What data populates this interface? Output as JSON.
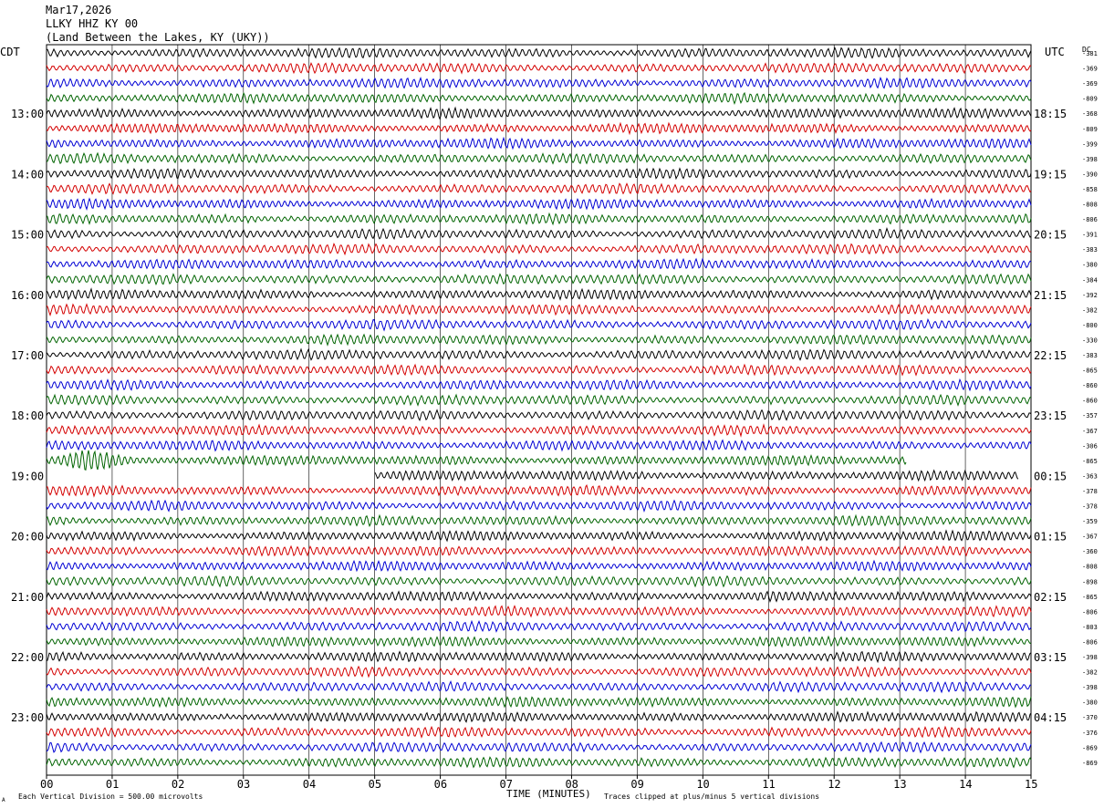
{
  "header": {
    "date": "Mar17,2026",
    "station": "LLKY HHZ KY 00",
    "location": "(Land Between the Lakes, KY (UKY))"
  },
  "left_tz": "CDT",
  "right_tz": "UTC",
  "dc_label": "DC",
  "footer": {
    "scale_note": "Each Vertical Division =  500.00 microvolts",
    "clip_note": "Traces clipped at plus/minus 5 vertical divisions",
    "corner_mark": "A"
  },
  "colors": {
    "trace_cycle": [
      "#000000",
      "#d40000",
      "#0000d4",
      "#006400"
    ],
    "grid": "#000000"
  },
  "chart_data": {
    "type": "line",
    "title": "Mar17,2026",
    "xlabel": "TIME (MINUTES)",
    "ylabel": "",
    "xlim": [
      0,
      15
    ],
    "x_ticks": [
      "00",
      "01",
      "02",
      "03",
      "04",
      "05",
      "06",
      "07",
      "08",
      "09",
      "10",
      "11",
      "12",
      "13",
      "14",
      "15"
    ],
    "left_time_labels": [
      "13:00",
      "14:00",
      "15:00",
      "16:00",
      "17:00",
      "18:00",
      "19:00",
      "20:00",
      "21:00",
      "22:00",
      "23:00"
    ],
    "right_time_labels": [
      "18:15",
      "19:15",
      "20:15",
      "21:15",
      "22:15",
      "23:15",
      "00:15",
      "01:15",
      "02:15",
      "03:15",
      "04:15"
    ],
    "rows_per_hour": 4,
    "row_count": 48,
    "dc_offsets": [
      "-381",
      "-369",
      "-369",
      "-809",
      "-368",
      "-809",
      "-399",
      "-398",
      "-390",
      "-858",
      "-808",
      "-806",
      "-391",
      "-383",
      "-380",
      "-384",
      "-392",
      "-382",
      "-800",
      "-330",
      "-383",
      "-865",
      "-860",
      "-860",
      "-357",
      "-367",
      "-306",
      "-865",
      "-363",
      "-378",
      "-378",
      "-359",
      "-367",
      "-360",
      "-808",
      "-898",
      "-865",
      "-806",
      "-803",
      "-806",
      "-398",
      "-382",
      "-398",
      "-380",
      "-370",
      "-376",
      "-869",
      "-869"
    ],
    "trace_end_minutes": [
      15,
      15,
      15,
      15,
      15,
      15,
      15,
      15,
      15,
      15,
      15,
      15,
      15,
      15,
      15,
      15,
      15,
      15,
      15,
      15,
      15,
      15,
      15,
      15,
      15,
      15,
      15,
      13.1,
      14.8,
      15,
      15,
      15,
      15,
      15,
      15,
      15,
      15,
      15,
      15,
      15,
      15,
      15,
      15,
      15,
      15,
      15,
      15,
      15
    ],
    "trace_start_minutes": [
      0,
      0,
      0,
      0,
      0,
      0,
      0,
      0,
      0,
      0,
      0,
      0,
      0,
      0,
      0,
      0,
      0,
      0,
      0,
      0,
      0,
      0,
      0,
      0,
      0,
      0,
      0,
      0,
      5,
      0,
      0,
      0,
      0,
      0,
      0,
      0,
      0,
      0,
      0,
      0,
      0,
      0,
      0,
      0,
      0,
      0,
      0,
      0
    ],
    "events": [
      {
        "row": 27,
        "start_minute": 0.0,
        "end_minute": 1.5,
        "description": "large local signal"
      }
    ]
  }
}
